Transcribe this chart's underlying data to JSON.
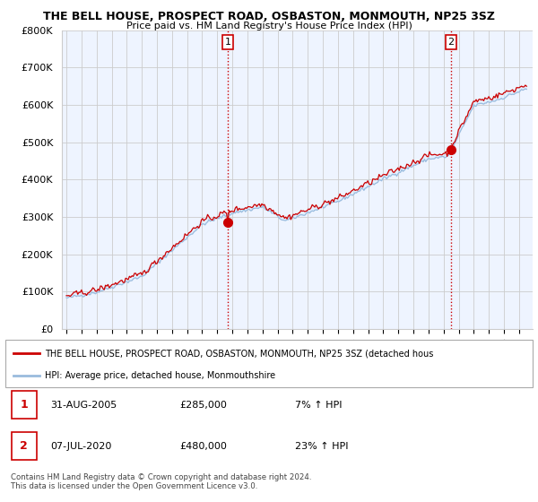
{
  "title": "THE BELL HOUSE, PROSPECT ROAD, OSBASTON, MONMOUTH, NP25 3SZ",
  "subtitle": "Price paid vs. HM Land Registry's House Price Index (HPI)",
  "y_ticks": [
    0,
    100000,
    200000,
    300000,
    400000,
    500000,
    600000,
    700000,
    800000
  ],
  "y_tick_labels": [
    "£0",
    "£100K",
    "£200K",
    "£300K",
    "£400K",
    "£500K",
    "£600K",
    "£700K",
    "£800K"
  ],
  "transaction1_date": 2005.67,
  "transaction1_price": 285000,
  "transaction2_date": 2020.52,
  "transaction2_price": 480000,
  "line_color_price": "#cc0000",
  "line_color_hpi": "#99bbdd",
  "fill_color": "#ddeeff",
  "marker_color": "#cc0000",
  "grid_color": "#cccccc",
  "background_color": "#ffffff",
  "chart_bg_color": "#eef4ff",
  "legend_line1": "THE BELL HOUSE, PROSPECT ROAD, OSBASTON, MONMOUTH, NP25 3SZ (detached hous",
  "legend_line2": "HPI: Average price, detached house, Monmouthshire",
  "annotation1_date": "31-AUG-2005",
  "annotation1_price": "£285,000",
  "annotation1_hpi": "7% ↑ HPI",
  "annotation2_date": "07-JUL-2020",
  "annotation2_price": "£480,000",
  "annotation2_hpi": "23% ↑ HPI",
  "footnote": "Contains HM Land Registry data © Crown copyright and database right 2024.\nThis data is licensed under the Open Government Licence v3.0."
}
